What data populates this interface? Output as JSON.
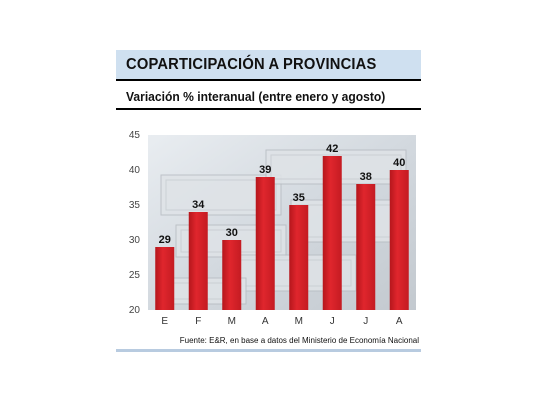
{
  "title": "COPARTICIPACIÓN A PROVINCIAS",
  "subtitle": "Variación % interanual (entre enero y agosto)",
  "source": "Fuente: E&R, en base a datos del Ministerio de Economía Nacional",
  "colors": {
    "bar": "#d51f26",
    "title_bg": "#cfe0f0",
    "text": "#111111"
  },
  "chart_data": {
    "type": "bar",
    "categories": [
      "E",
      "F",
      "M",
      "A",
      "M",
      "J",
      "J",
      "A"
    ],
    "values": [
      29,
      34,
      30,
      39,
      35,
      42,
      38,
      40
    ],
    "title": "COPARTICIPACIÓN A PROVINCIAS",
    "subtitle": "Variación % interanual (entre enero y agosto)",
    "ylim": [
      20,
      45
    ],
    "yticks": [
      20,
      25,
      30,
      35,
      40,
      45
    ],
    "data_labels": true,
    "grid": false,
    "legend": "none"
  }
}
